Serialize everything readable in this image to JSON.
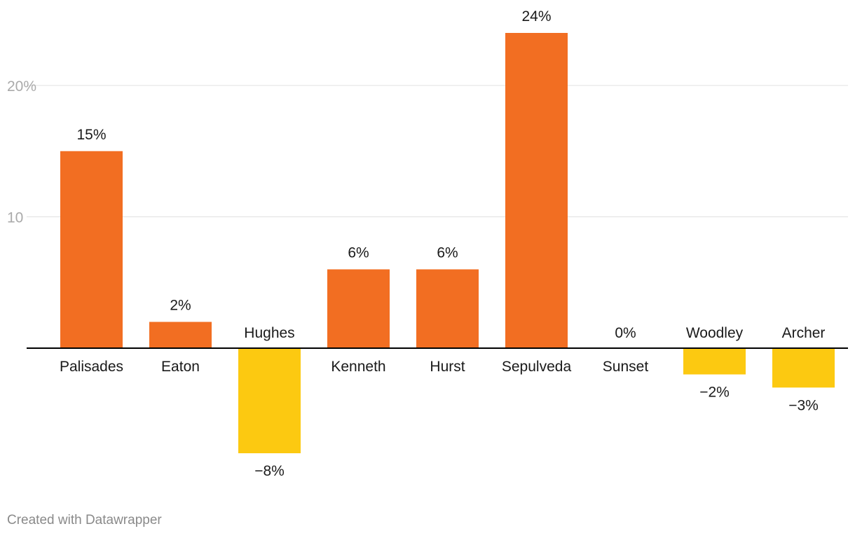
{
  "chart_data": {
    "type": "bar",
    "categories": [
      "Palisades",
      "Eaton",
      "Hughes",
      "Kenneth",
      "Hurst",
      "Sepulveda",
      "Sunset",
      "Woodley",
      "Archer"
    ],
    "values": [
      15,
      2,
      -8,
      6,
      6,
      24,
      0,
      -2,
      -3
    ],
    "value_labels": [
      "15%",
      "2%",
      "−8%",
      "6%",
      "6%",
      "24%",
      "0%",
      "−2%",
      "−3%"
    ],
    "yticks": [
      {
        "value": 10,
        "label": "10"
      },
      {
        "value": 20,
        "label": "20%"
      }
    ],
    "ylim": [
      -8,
      24
    ],
    "grid": true,
    "colors": {
      "positive": "#f26e22",
      "negative": "#fcc911",
      "baseline": "#000000",
      "grid": "#e0e0e0"
    }
  },
  "footer": {
    "credit": "Created with Datawrapper"
  }
}
